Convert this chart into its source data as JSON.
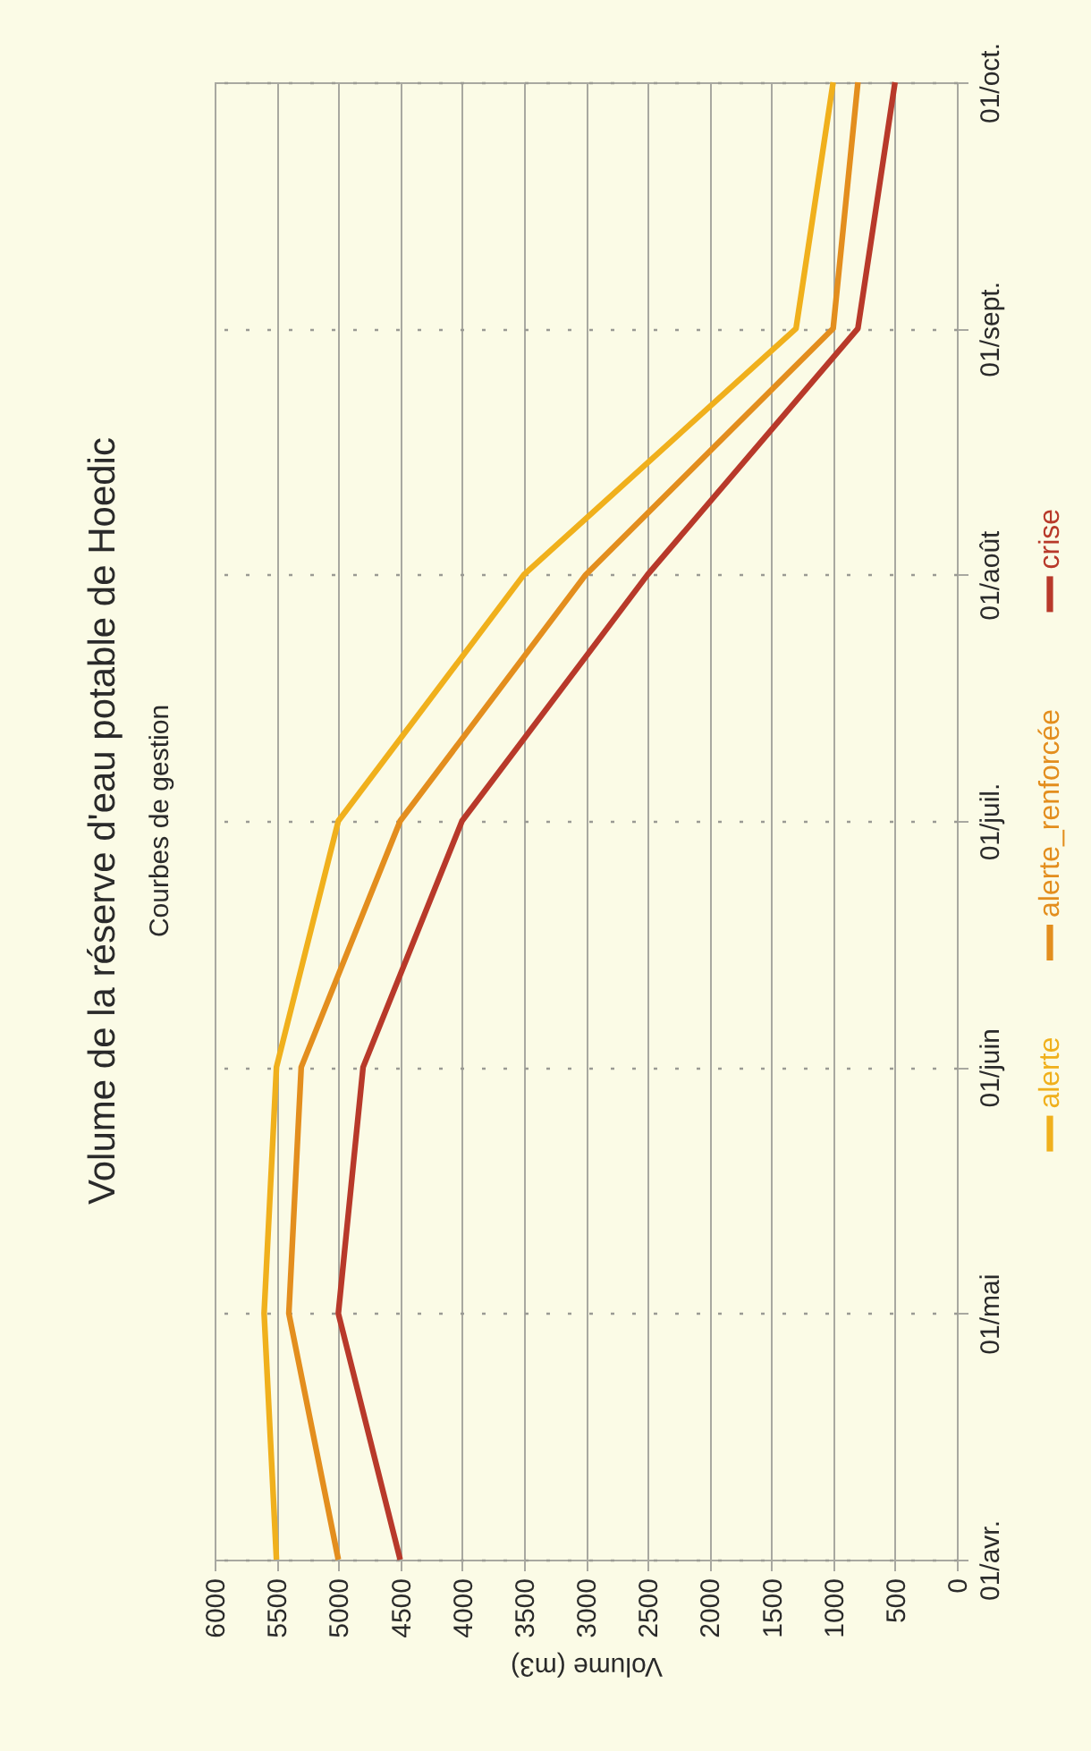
{
  "chart_data": {
    "type": "line",
    "orientation": "horizontal",
    "title": "Volume de la réserve d'eau potable de Hoedic",
    "subtitle": "Courbes de gestion",
    "xlabel": "Volume (m3)",
    "categories": [
      "01/oct.",
      "01/sept.",
      "01/août",
      "01/juil.",
      "01/juin",
      "01/mai",
      "01/avr."
    ],
    "series": [
      {
        "name": "alerte",
        "color": "#f0b01c",
        "values": [
          1000,
          1300,
          3500,
          5000,
          5500,
          5600,
          5500
        ]
      },
      {
        "name": "alerte_renforcée",
        "color": "#e38e1e",
        "values": [
          800,
          1000,
          3000,
          4500,
          5300,
          5400,
          5000
        ]
      },
      {
        "name": "crise",
        "color": "#b8392a",
        "values": [
          500,
          800,
          2500,
          4000,
          4800,
          5000,
          4500
        ]
      }
    ],
    "xlim": [
      6000,
      0
    ],
    "xticks": [
      6000,
      5500,
      5000,
      4500,
      4000,
      3500,
      3000,
      2500,
      2000,
      1500,
      1000,
      500,
      0
    ],
    "grid": true,
    "legend": "right"
  }
}
